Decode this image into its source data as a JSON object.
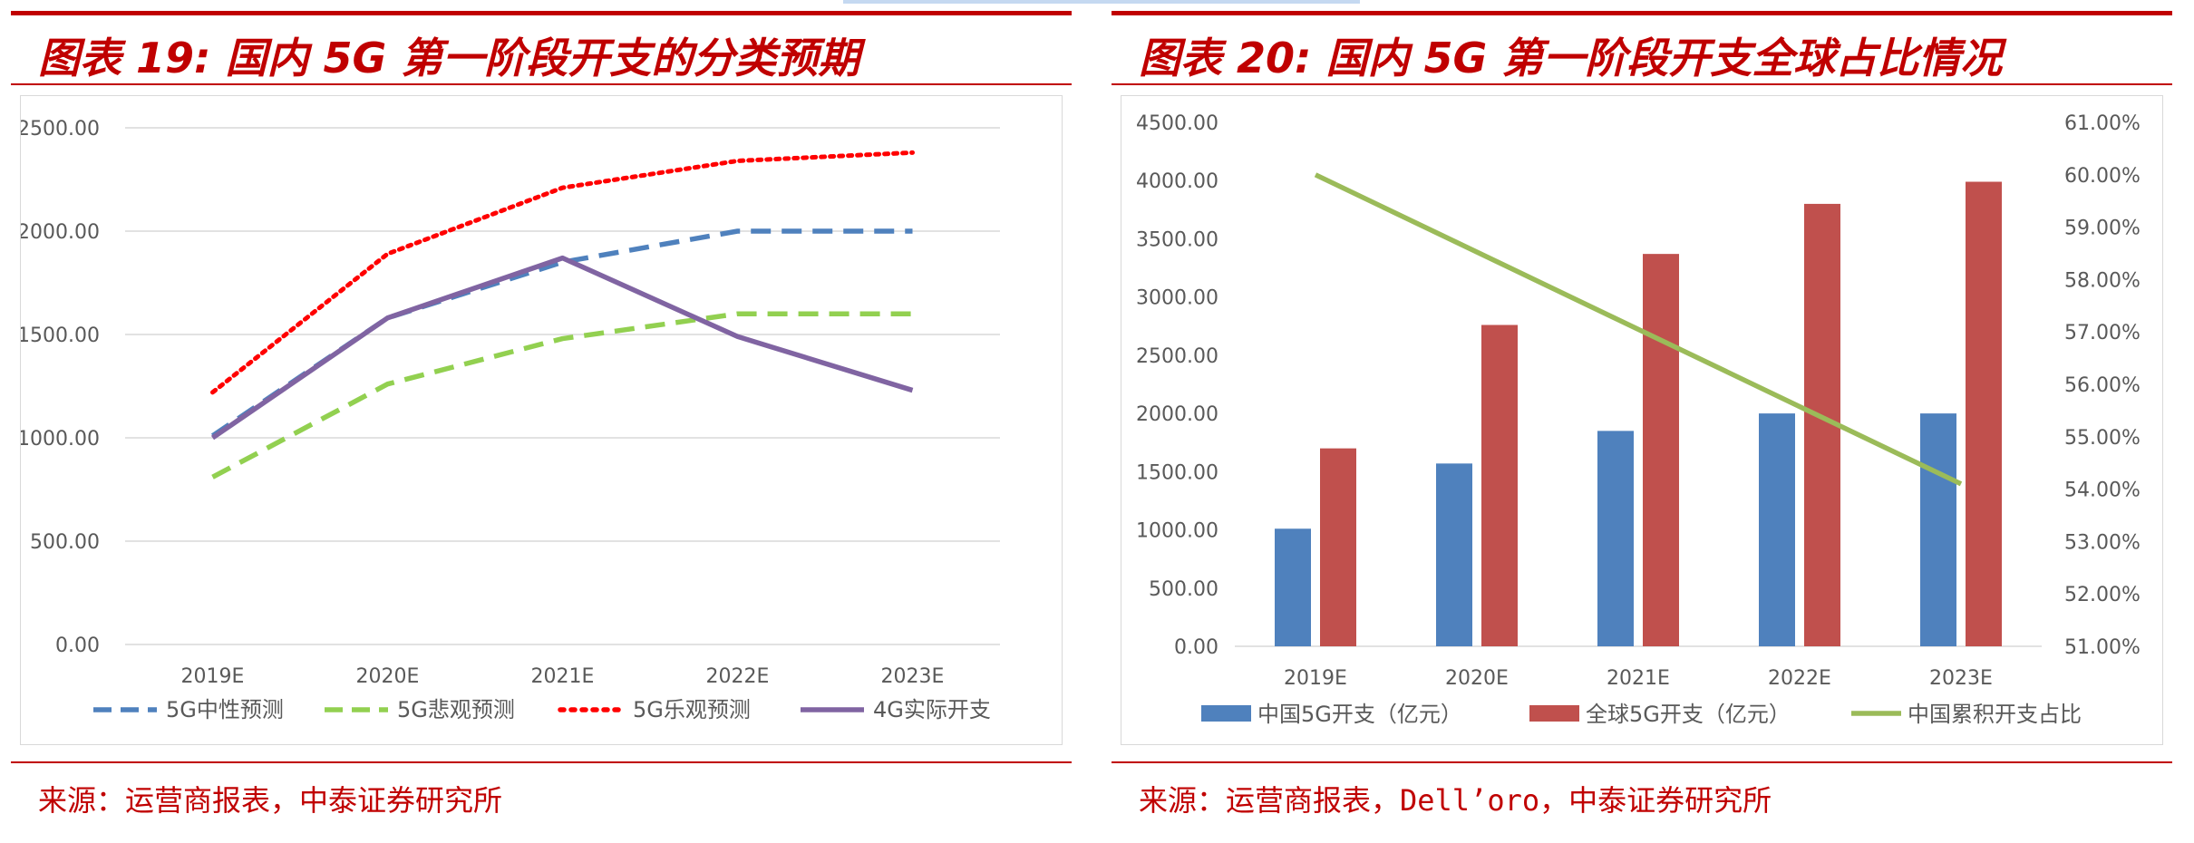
{
  "theme": {
    "accent": "#c00000",
    "gridline": "#d9d9d9",
    "axis_text": "#595959",
    "top_deco": "#c5d9f1"
  },
  "left_panel": {
    "title": "图表 19: 国内 5G 第一阶段开支的分类预期",
    "source": "来源：运营商报表，中泰证券研究所"
  },
  "right_panel": {
    "title": "图表 20: 国内 5G 第一阶段开支全球占比情况",
    "source": "来源：运营商报表，Dell’oro，中泰证券研究所"
  },
  "chart_data": [
    {
      "type": "line",
      "title": "",
      "categories": [
        "2019E",
        "2020E",
        "2021E",
        "2022E",
        "2023E"
      ],
      "ylim": [
        0,
        2500
      ],
      "yticks": [
        "0.00",
        "500.00",
        "1000.00",
        "1500.00",
        "2000.00",
        "2500.00"
      ],
      "grid": true,
      "legend_position": "bottom",
      "series": [
        {
          "name": "5G中性预测",
          "values": [
            1010,
            1580,
            1850,
            2000,
            2000
          ],
          "color": "#4f81bd",
          "style": "dashed"
        },
        {
          "name": "5G悲观预测",
          "values": [
            810,
            1260,
            1480,
            1600,
            1600
          ],
          "color": "#92d050",
          "style": "dashed"
        },
        {
          "name": "5G乐观预测",
          "values": [
            1220,
            1890,
            2210,
            2340,
            2380
          ],
          "color": "#ff0000",
          "style": "dotted"
        },
        {
          "name": "4G实际开支",
          "values": [
            1000,
            1580,
            1870,
            1490,
            1230
          ],
          "color": "#8064a2",
          "style": "solid"
        }
      ]
    },
    {
      "type": "bar",
      "title": "",
      "categories": [
        "2019E",
        "2020E",
        "2021E",
        "2022E",
        "2023E"
      ],
      "ylim": [
        0,
        4500
      ],
      "yticks": [
        "0.00",
        "500.00",
        "1000.00",
        "1500.00",
        "2000.00",
        "2500.00",
        "3000.00",
        "3500.00",
        "4000.00",
        "4500.00"
      ],
      "y2lim": [
        0.51,
        0.61
      ],
      "y2ticks": [
        "51.00%",
        "52.00%",
        "53.00%",
        "54.00%",
        "55.00%",
        "56.00%",
        "57.00%",
        "58.00%",
        "59.00%",
        "60.00%",
        "61.00%"
      ],
      "grid": false,
      "legend_position": "bottom",
      "series": [
        {
          "name": "中国5G开支（亿元）",
          "type": "bar",
          "axis": "left",
          "values": [
            1010,
            1570,
            1850,
            2000,
            2000
          ],
          "color": "#4f81bd"
        },
        {
          "name": "全球5G开支（亿元）",
          "type": "bar",
          "axis": "left",
          "values": [
            1700,
            2760,
            3370,
            3800,
            3990
          ],
          "color": "#c0504d"
        },
        {
          "name": "中国累积开支占比",
          "type": "line",
          "axis": "right",
          "values": [
            0.6,
            null,
            null,
            null,
            0.541
          ],
          "color": "#9bbb59"
        }
      ]
    }
  ]
}
